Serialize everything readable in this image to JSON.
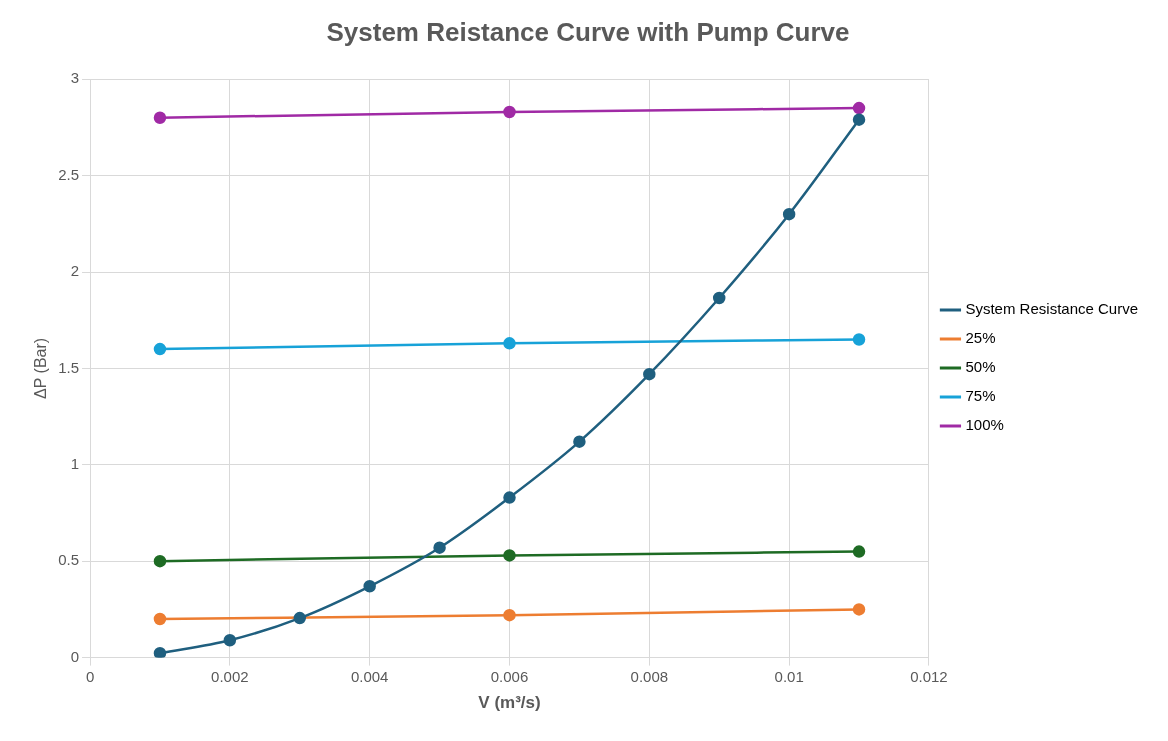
{
  "chart_data": {
    "type": "line",
    "title": "System Reistance Curve with Pump Curve",
    "xlabel": "V (m³/s)",
    "ylabel": "ΔP (Bar)",
    "xlim": [
      0,
      0.012
    ],
    "xticks": [
      0,
      0.002,
      0.004,
      0.006,
      0.008,
      0.01,
      0.012
    ],
    "ylim": [
      0,
      3
    ],
    "yticks": [
      0,
      0.5,
      1,
      1.5,
      2,
      2.5,
      3
    ],
    "grid": true,
    "legend": "right",
    "marker": "circle",
    "line_style": "solid",
    "series": [
      {
        "name": "System Resistance Curve",
        "color": "#1f5f7f",
        "x": [
          0.001,
          0.002,
          0.003,
          0.004,
          0.005,
          0.006,
          0.007,
          0.008,
          0.009,
          0.01,
          0.011
        ],
        "values": [
          0.023,
          0.09,
          0.205,
          0.37,
          0.57,
          0.83,
          1.12,
          1.47,
          1.865,
          2.3,
          2.79
        ]
      },
      {
        "name": "25%",
        "color": "#ed7d31",
        "x": [
          0.001,
          0.006,
          0.011
        ],
        "values": [
          0.2,
          0.22,
          0.25
        ]
      },
      {
        "name": "50%",
        "color": "#1e6b24",
        "x": [
          0.001,
          0.006,
          0.011
        ],
        "values": [
          0.5,
          0.53,
          0.55
        ]
      },
      {
        "name": "75%",
        "color": "#17a2d8",
        "x": [
          0.001,
          0.006,
          0.011
        ],
        "values": [
          1.6,
          1.63,
          1.65
        ]
      },
      {
        "name": "100%",
        "color": "#a02aa5",
        "x": [
          0.001,
          0.006,
          0.011
        ],
        "values": [
          2.8,
          2.83,
          2.85
        ]
      }
    ]
  }
}
